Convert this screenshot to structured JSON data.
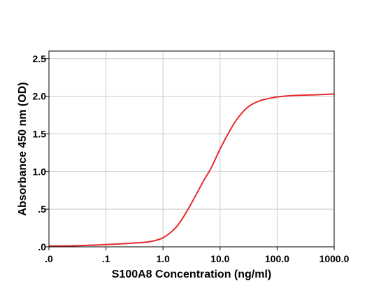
{
  "chart_data": {
    "type": "line",
    "xlabel": "S100A8 Concentration (ng/ml)",
    "ylabel": "Absorbance 450 nm (OD)",
    "x_scale": "log",
    "xlim": [
      0.01,
      1000
    ],
    "ylim": [
      0,
      2.6
    ],
    "grid": true,
    "x_ticks": [
      {
        "value": 0.01,
        "label": ".0"
      },
      {
        "value": 0.1,
        "label": ".1"
      },
      {
        "value": 1,
        "label": "1.0"
      },
      {
        "value": 10,
        "label": "10.0"
      },
      {
        "value": 100,
        "label": "100.0"
      },
      {
        "value": 1000,
        "label": "1000.0"
      }
    ],
    "y_ticks": [
      {
        "value": 0,
        "label": ".0"
      },
      {
        "value": 0.5,
        "label": ".5"
      },
      {
        "value": 1.0,
        "label": "1.0"
      },
      {
        "value": 1.5,
        "label": "1.5"
      },
      {
        "value": 2.0,
        "label": "2.0"
      },
      {
        "value": 2.5,
        "label": "2.5"
      }
    ],
    "series": [
      {
        "color": "#e8292b",
        "x": [
          0.01,
          0.03,
          0.1,
          0.3,
          0.6,
          1.0,
          1.5,
          2.0,
          3.0,
          5.0,
          7.0,
          10.0,
          15.0,
          20.0,
          30.0,
          50.0,
          100.0,
          200.0,
          500.0,
          1000.0
        ],
        "y": [
          0.01,
          0.015,
          0.03,
          0.05,
          0.07,
          0.12,
          0.22,
          0.33,
          0.55,
          0.86,
          1.05,
          1.3,
          1.55,
          1.7,
          1.85,
          1.94,
          1.99,
          2.01,
          2.02,
          2.03
        ]
      }
    ]
  }
}
